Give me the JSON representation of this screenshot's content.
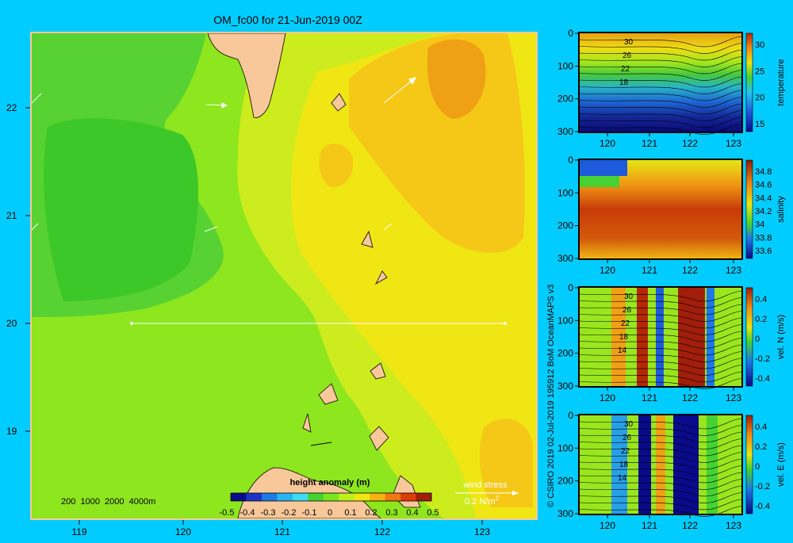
{
  "title": "OM_fc00 for 21-Jun-2019 00Z",
  "map": {
    "lon_ticks": [
      "119",
      "120",
      "121",
      "122",
      "123"
    ],
    "lat_ticks": [
      "22",
      "21",
      "20",
      "19"
    ],
    "depth_legend": "200  1000  2000  4000m",
    "section_line": {
      "lon_start": 119.5,
      "lon_end": 123.2,
      "lat": 20.0
    }
  },
  "colorbar": {
    "title": "height anomaly (m)",
    "ticks": [
      "-0.5",
      "-0.4",
      "-0.3",
      "-0.2",
      "-0.1",
      "0",
      "0.1",
      "0.2",
      "0.3",
      "0.4",
      "0.5"
    ],
    "colors": [
      "#0a0a8c",
      "#1e32c8",
      "#1e78e6",
      "#28b4f0",
      "#3cdcf0",
      "#46d232",
      "#78e61e",
      "#bef01e",
      "#f0e614",
      "#f5b414",
      "#f07814",
      "#dc3c0a",
      "#a01e0a"
    ]
  },
  "wind_stress": {
    "label": "wind stress",
    "value": "0.2 N/m",
    "exp": "2"
  },
  "credit": "© CSIRO 2019   02-Jul-2019 195912 BoM OceanMAPS v3",
  "panels": [
    {
      "id": "temperature",
      "cbar_label": "temperature",
      "cbar_ticks": [
        "30",
        "25",
        "20",
        "15"
      ],
      "contour_labels": [
        "30",
        "26",
        "22",
        "18"
      ]
    },
    {
      "id": "salinity",
      "cbar_label": "salinity",
      "cbar_ticks": [
        "34.8",
        "34.6",
        "34.4",
        "34.2",
        "34",
        "33.8",
        "33.6"
      ],
      "contour_labels": []
    },
    {
      "id": "vel-n",
      "cbar_label": "vel. N (m/s)",
      "cbar_ticks": [
        "0.4",
        "0.2",
        "0",
        "-0.2",
        "-0.4"
      ],
      "contour_labels": [
        "30",
        "26",
        "22",
        "18",
        "14"
      ]
    },
    {
      "id": "vel-e",
      "cbar_label": "vel. E (m/s)",
      "cbar_ticks": [
        "0.4",
        "0.2",
        "0",
        "-0.2",
        "-0.4"
      ],
      "contour_labels": [
        "30",
        "26",
        "22",
        "18",
        "14"
      ]
    }
  ],
  "section_axes": {
    "x_ticks": [
      "120",
      "121",
      "122",
      "123"
    ],
    "y_ticks": [
      "0",
      "100",
      "200",
      "300"
    ]
  }
}
